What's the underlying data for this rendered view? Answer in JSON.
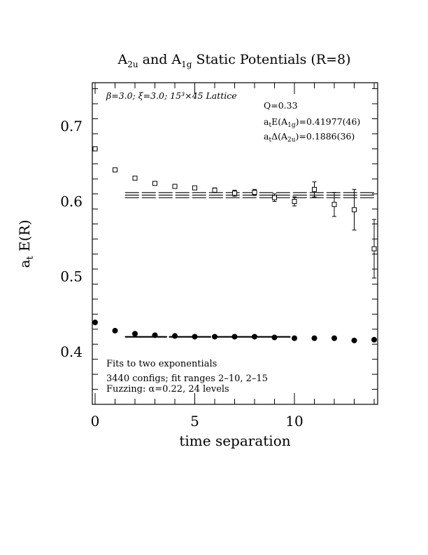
{
  "chart_data": {
    "type": "scatter",
    "title_main": "A",
    "title_sub1": "2u",
    "title_mid": " and A",
    "title_sub2": "1g",
    "title_tail": " Static Potentials (R=8)",
    "xlabel": "time separation",
    "ylabel_main": "a",
    "ylabel_sub": "t",
    "ylabel_tail": " E(R)",
    "xlim": [
      0,
      14
    ],
    "ylim": [
      0.33,
      0.758
    ],
    "x_ticks": [
      0,
      5,
      10
    ],
    "x_tick_labels": [
      "0",
      "5",
      "10"
    ],
    "y_ticks": [
      0.4,
      0.5,
      0.6,
      0.7
    ],
    "y_tick_labels": [
      "0.4",
      "0.5",
      "0.6",
      "0.7"
    ],
    "info_top": "β=3.0; ξ=3.0; 15³×45 Lattice",
    "fit_q": "Q=0.33",
    "fit_e_pre": "a",
    "fit_e_sub1": "t",
    "fit_e_mid": "E(A",
    "fit_e_sub2": "1g",
    "fit_e_post": ")=0.41977(46)",
    "fit_d_pre": "a",
    "fit_d_sub1": "t",
    "fit_d_mid": "Δ(A",
    "fit_d_sub2": "2u",
    "fit_d_post": ")=0.1886(36)",
    "notes": [
      "Fits to two exponentials",
      "3440 configs; fit ranges 2–10, 2–15",
      "Fuzzing: α=0.22, 24 levels"
    ],
    "series": [
      {
        "marker": "open-square",
        "points": [
          {
            "x": 0,
            "y": 0.67,
            "err": 0.002
          },
          {
            "x": 1,
            "y": 0.642,
            "err": 0.002
          },
          {
            "x": 2,
            "y": 0.631,
            "err": 0.002
          },
          {
            "x": 3,
            "y": 0.624,
            "err": 0.002
          },
          {
            "x": 4,
            "y": 0.62,
            "err": 0.002
          },
          {
            "x": 5,
            "y": 0.618,
            "err": 0.002
          },
          {
            "x": 6,
            "y": 0.615,
            "err": 0.003
          },
          {
            "x": 7,
            "y": 0.611,
            "err": 0.004
          },
          {
            "x": 8,
            "y": 0.612,
            "err": 0.004
          },
          {
            "x": 9,
            "y": 0.605,
            "err": 0.005
          },
          {
            "x": 10,
            "y": 0.6,
            "err": 0.006
          },
          {
            "x": 11,
            "y": 0.616,
            "err": 0.01
          },
          {
            "x": 12,
            "y": 0.596,
            "err": 0.016
          },
          {
            "x": 13,
            "y": 0.589,
            "err": 0.027
          },
          {
            "x": 14,
            "y": 0.537,
            "err": 0.039
          }
        ],
        "fit_band": {
          "x_start": 1.5,
          "x_end": 14,
          "center": 0.6084,
          "upper": 0.6118,
          "lower": 0.605
        }
      },
      {
        "marker": "filled-circle",
        "points": [
          {
            "x": 0,
            "y": 0.439,
            "err": 0.0
          },
          {
            "x": 1,
            "y": 0.428,
            "err": 0.0
          },
          {
            "x": 2,
            "y": 0.424,
            "err": 0.0
          },
          {
            "x": 3,
            "y": 0.422,
            "err": 0.0
          },
          {
            "x": 4,
            "y": 0.421,
            "err": 0.0
          },
          {
            "x": 5,
            "y": 0.42,
            "err": 0.0
          },
          {
            "x": 6,
            "y": 0.42,
            "err": 0.0
          },
          {
            "x": 7,
            "y": 0.42,
            "err": 0.0
          },
          {
            "x": 8,
            "y": 0.42,
            "err": 0.0
          },
          {
            "x": 9,
            "y": 0.419,
            "err": 0.0
          },
          {
            "x": 10,
            "y": 0.418,
            "err": 0.0
          },
          {
            "x": 11,
            "y": 0.418,
            "err": 0.0
          },
          {
            "x": 12,
            "y": 0.418,
            "err": 0.0
          },
          {
            "x": 13,
            "y": 0.415,
            "err": 0.0
          },
          {
            "x": 14,
            "y": 0.416,
            "err": 0.0
          }
        ],
        "fit_band": {
          "x_start": 1.5,
          "x_end": 9.8,
          "center": 0.41977,
          "upper": 0.42023,
          "lower": 0.41931
        }
      }
    ]
  }
}
